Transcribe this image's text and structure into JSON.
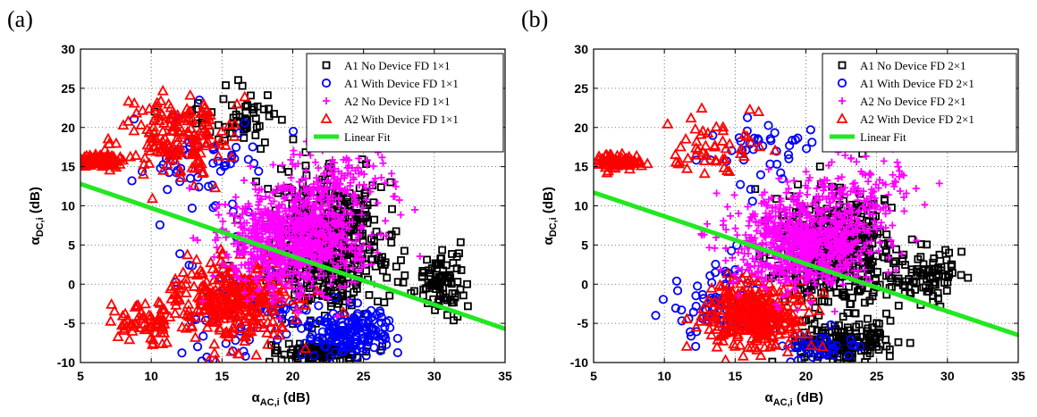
{
  "chart_data": [
    {
      "panel_label": "(a)",
      "type": "scatter",
      "xlabel": "α_AC,i (dB)",
      "ylabel": "α_DC,i (dB)",
      "xlim": [
        5,
        35
      ],
      "ylim": [
        -10,
        30
      ],
      "xticks": [
        5,
        10,
        15,
        20,
        25,
        30,
        35
      ],
      "yticks": [
        -10,
        -5,
        0,
        5,
        10,
        15,
        20,
        25,
        30
      ],
      "grid": "dotted",
      "legend_position": "top-right",
      "series": [
        {
          "name": "A1 No Device FD 1×1",
          "marker": "square",
          "color": "#000000",
          "clusters": [
            {
              "center": [
                22.5,
                5
              ],
              "spread": [
                3.5,
                7
              ],
              "count": 520
            },
            {
              "center": [
                30.5,
                0.5
              ],
              "spread": [
                1.5,
                3
              ],
              "count": 90
            },
            {
              "center": [
                22,
                -8.5
              ],
              "spread": [
                3,
                1.2
              ],
              "count": 110
            },
            {
              "center": [
                16,
                21
              ],
              "spread": [
                2.5,
                3
              ],
              "count": 60
            }
          ]
        },
        {
          "name": "A1 With Device FD 1×1",
          "marker": "circle",
          "color": "#0000ff",
          "clusters": [
            {
              "center": [
                24,
                -6
              ],
              "spread": [
                2.5,
                2.5
              ],
              "count": 170
            },
            {
              "center": [
                17,
                -3
              ],
              "spread": [
                4,
                6
              ],
              "count": 80
            },
            {
              "center": [
                14,
                16
              ],
              "spread": [
                4,
                5
              ],
              "count": 60
            }
          ]
        },
        {
          "name": "A2 No Device FD 1×1",
          "marker": "plus",
          "color": "#ff00ff",
          "clusters": [
            {
              "center": [
                20,
                6
              ],
              "spread": [
                4,
                5.5
              ],
              "count": 900
            },
            {
              "center": [
                23,
                13
              ],
              "spread": [
                3.5,
                4
              ],
              "count": 120
            }
          ]
        },
        {
          "name": "A2 With Device FD 1×1",
          "marker": "triangle",
          "color": "#ff0000",
          "clusters": [
            {
              "center": [
                6.5,
                15.8
              ],
              "spread": [
                1.2,
                0.7
              ],
              "count": 90
            },
            {
              "center": [
                12,
                19
              ],
              "spread": [
                3,
                4
              ],
              "count": 170
            },
            {
              "center": [
                16,
                -2
              ],
              "spread": [
                3.5,
                4.5
              ],
              "count": 320
            },
            {
              "center": [
                9.5,
                -5
              ],
              "spread": [
                2,
                2
              ],
              "count": 70
            }
          ]
        }
      ],
      "fit": {
        "name": "Linear Fit",
        "color": "#22e722",
        "x": [
          5,
          35
        ],
        "y": [
          12.8,
          -5.7
        ]
      }
    },
    {
      "panel_label": "(b)",
      "type": "scatter",
      "xlabel": "α_AC,i (dB)",
      "ylabel": "α_DC,i (dB)",
      "xlim": [
        5,
        35
      ],
      "ylim": [
        -10,
        30
      ],
      "xticks": [
        5,
        10,
        15,
        20,
        25,
        30,
        35
      ],
      "yticks": [
        -10,
        -5,
        0,
        5,
        10,
        15,
        20,
        25,
        30
      ],
      "grid": "dotted",
      "legend_position": "top-right",
      "series": [
        {
          "name": "A1 No Device FD 2×1",
          "marker": "square",
          "color": "#000000",
          "clusters": [
            {
              "center": [
                22,
                4
              ],
              "spread": [
                3.5,
                6
              ],
              "count": 450
            },
            {
              "center": [
                28.5,
                1
              ],
              "spread": [
                1.8,
                2.5
              ],
              "count": 80
            },
            {
              "center": [
                23,
                -7.5
              ],
              "spread": [
                3,
                2
              ],
              "count": 160
            }
          ]
        },
        {
          "name": "A1 With Device FD 2×1",
          "marker": "circle",
          "color": "#0000ff",
          "clusters": [
            {
              "center": [
                14,
                -2
              ],
              "spread": [
                3,
                4
              ],
              "count": 70
            },
            {
              "center": [
                17,
                17
              ],
              "spread": [
                4,
                4
              ],
              "count": 40
            },
            {
              "center": [
                21,
                -8
              ],
              "spread": [
                2,
                1.5
              ],
              "count": 40
            }
          ]
        },
        {
          "name": "A2 No Device FD 2×1",
          "marker": "plus",
          "color": "#ff00ff",
          "clusters": [
            {
              "center": [
                20,
                5.5
              ],
              "spread": [
                4,
                5
              ],
              "count": 850
            },
            {
              "center": [
                24,
                12
              ],
              "spread": [
                3.5,
                4
              ],
              "count": 110
            }
          ]
        },
        {
          "name": "A2 With Device FD 2×1",
          "marker": "triangle",
          "color": "#ff0000",
          "clusters": [
            {
              "center": [
                6.5,
                15.5
              ],
              "spread": [
                1.3,
                0.8
              ],
              "count": 80
            },
            {
              "center": [
                16.5,
                -4
              ],
              "spread": [
                3,
                3.5
              ],
              "count": 330
            },
            {
              "center": [
                13,
                18
              ],
              "spread": [
                3,
                4
              ],
              "count": 50
            }
          ]
        }
      ],
      "fit": {
        "name": "Linear Fit",
        "color": "#22e722",
        "x": [
          5,
          35
        ],
        "y": [
          11.7,
          -6.5
        ]
      }
    }
  ]
}
